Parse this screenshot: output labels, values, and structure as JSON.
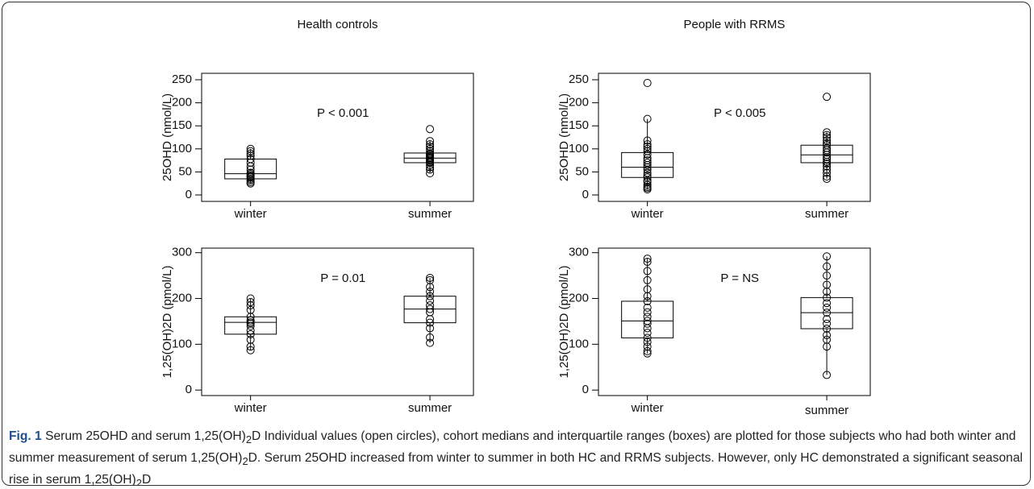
{
  "chart_data": [
    {
      "type": "box",
      "title": "Health controls",
      "ylabel": "25OHD (nmol/L)",
      "annotation": "P < 0.001",
      "categories": [
        "winter",
        "summer"
      ],
      "ylim": [
        -14,
        264
      ],
      "yticks": [
        0,
        50,
        100,
        150,
        200,
        250
      ],
      "boxes": [
        {
          "q1": 35,
          "median": 46,
          "q3": 78,
          "whisker_low": 25,
          "whisker_high": 100,
          "points": [
            25,
            28,
            32,
            35,
            38,
            40,
            42,
            45,
            48,
            55,
            62,
            70,
            78,
            85,
            90,
            95,
            100
          ]
        },
        {
          "q1": 70,
          "median": 80,
          "q3": 91,
          "whisker_low": 47,
          "whisker_high": 117,
          "points": [
            47,
            55,
            60,
            65,
            70,
            72,
            75,
            78,
            80,
            82,
            85,
            88,
            90,
            95,
            100,
            105,
            110,
            117,
            143
          ]
        }
      ]
    },
    {
      "type": "box",
      "title": "People with RRMS",
      "ylabel": "25OHD (nmol/L)",
      "annotation": "P < 0.005",
      "categories": [
        "winter",
        "summer"
      ],
      "ylim": [
        -14,
        264
      ],
      "yticks": [
        0,
        50,
        100,
        150,
        200,
        250
      ],
      "boxes": [
        {
          "q1": 38,
          "median": 60,
          "q3": 92,
          "whisker_low": 12,
          "whisker_high": 165,
          "points": [
            12,
            15,
            18,
            22,
            28,
            32,
            38,
            42,
            48,
            55,
            60,
            65,
            70,
            75,
            80,
            88,
            95,
            100,
            105,
            110,
            118,
            165,
            243
          ]
        },
        {
          "q1": 70,
          "median": 87,
          "q3": 108,
          "whisker_low": 35,
          "whisker_high": 136,
          "points": [
            35,
            40,
            48,
            55,
            62,
            68,
            72,
            78,
            82,
            87,
            92,
            97,
            102,
            108,
            112,
            118,
            125,
            130,
            136,
            213
          ]
        }
      ]
    },
    {
      "type": "box",
      "ylabel": "1,25(OH)2D  (pmol/L)",
      "annotation": "P = 0.01",
      "categories": [
        "winter",
        "summer"
      ],
      "ylim": [
        -12,
        310
      ],
      "yticks": [
        0,
        100,
        200,
        300
      ],
      "boxes": [
        {
          "q1": 122,
          "median": 148,
          "q3": 160,
          "whisker_low": 87,
          "whisker_high": 200,
          "points": [
            87,
            95,
            110,
            122,
            130,
            140,
            145,
            148,
            152,
            160,
            175,
            185,
            192,
            200
          ]
        },
        {
          "q1": 147,
          "median": 177,
          "q3": 205,
          "whisker_low": 103,
          "whisker_high": 245,
          "points": [
            103,
            115,
            135,
            147,
            155,
            170,
            177,
            185,
            195,
            205,
            215,
            225,
            240,
            245
          ]
        }
      ]
    },
    {
      "type": "box",
      "ylabel": "1,25(OH)2D  (pmol/L)",
      "annotation": "P = NS",
      "categories": [
        "winter",
        "summer"
      ],
      "ylim": [
        -12,
        310
      ],
      "yticks": [
        0,
        100,
        200,
        300
      ],
      "boxes": [
        {
          "q1": 114,
          "median": 151,
          "q3": 194,
          "whisker_low": 80,
          "whisker_high": 287,
          "points": [
            80,
            85,
            95,
            105,
            114,
            125,
            135,
            145,
            151,
            160,
            170,
            180,
            194,
            205,
            220,
            240,
            260,
            280,
            287
          ]
        },
        {
          "q1": 134,
          "median": 169,
          "q3": 202,
          "whisker_low": 33,
          "whisker_high": 292,
          "points": [
            33,
            95,
            110,
            120,
            134,
            145,
            155,
            169,
            180,
            190,
            202,
            215,
            230,
            250,
            270,
            292
          ]
        }
      ]
    }
  ],
  "caption": {
    "label": "Fig. 1",
    "parts": [
      "Serum 25OHD and serum 1,25(OH)",
      "2",
      "D Individual values (open circles), cohort medians and interquartile ranges (boxes) are plotted for those subjects who had both winter and summer measurement of serum 1,25(OH)",
      "2",
      "D. Serum 25OHD increased from winter to summer in both HC and RRMS subjects. However, only HC demonstrated a significant seasonal rise in serum 1,25(OH)",
      "2",
      "D"
    ]
  }
}
